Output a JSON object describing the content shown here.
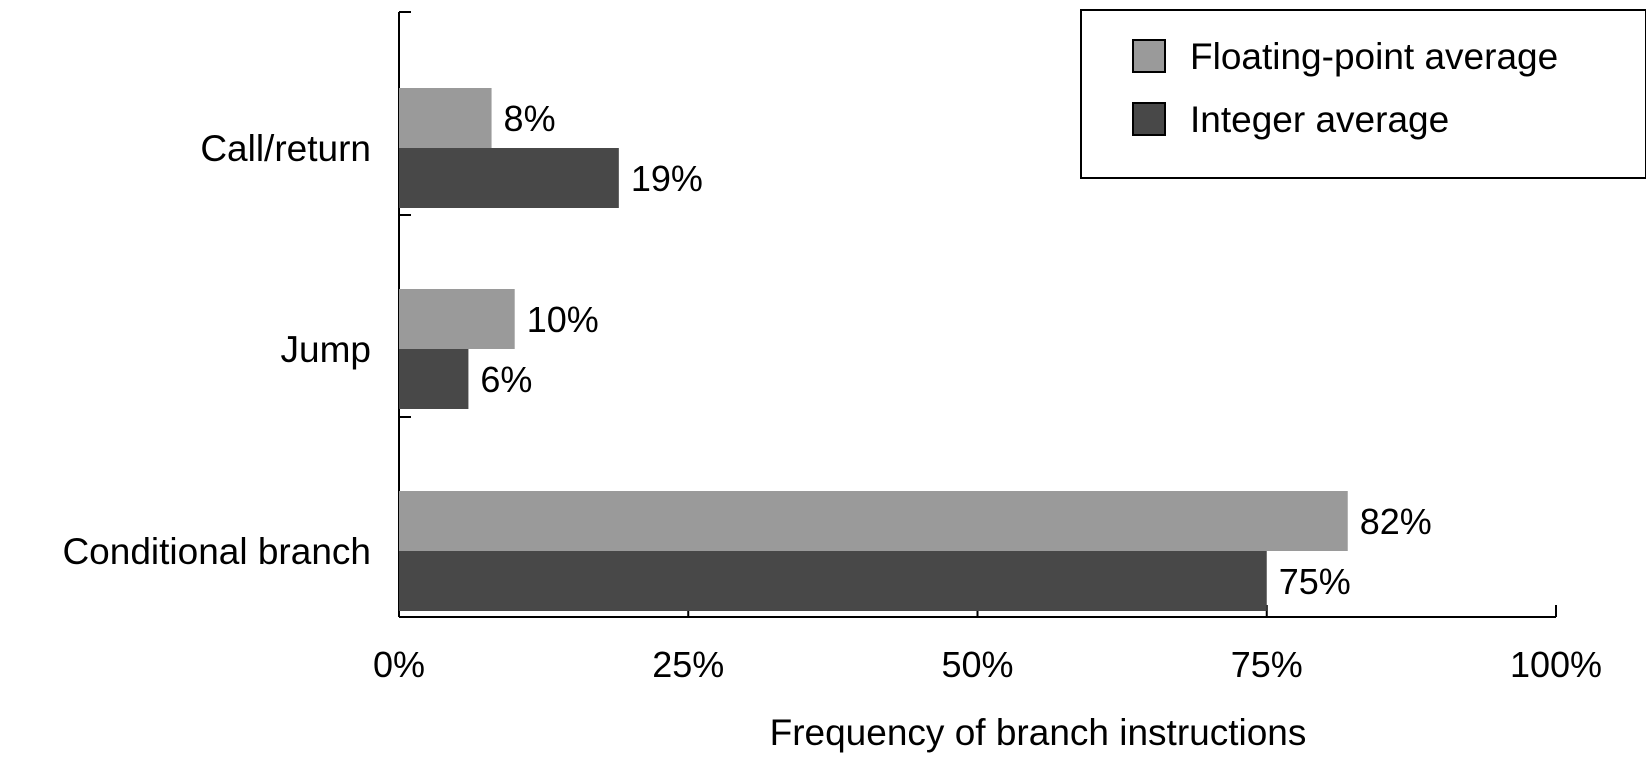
{
  "chart_data": {
    "type": "bar",
    "orientation": "horizontal",
    "categories": [
      "Call/return",
      "Jump",
      "Conditional branch"
    ],
    "series": [
      {
        "name": "Floating-point average",
        "values": [
          8,
          10,
          82
        ],
        "labels": [
          "8%",
          "10%",
          "82%"
        ],
        "color": "#9a9a9a"
      },
      {
        "name": "Integer average",
        "values": [
          19,
          6,
          75
        ],
        "labels": [
          "19%",
          "6%",
          "75%"
        ],
        "color": "#484848"
      }
    ],
    "xlabel": "Frequency of branch instructions",
    "ylabel": "",
    "xlim": [
      0,
      100
    ],
    "xticks": [
      0,
      25,
      50,
      75,
      100
    ],
    "xtick_labels": [
      "0%",
      "25%",
      "50%",
      "75%",
      "100%"
    ],
    "grid": false,
    "legend_position": "top-right"
  }
}
